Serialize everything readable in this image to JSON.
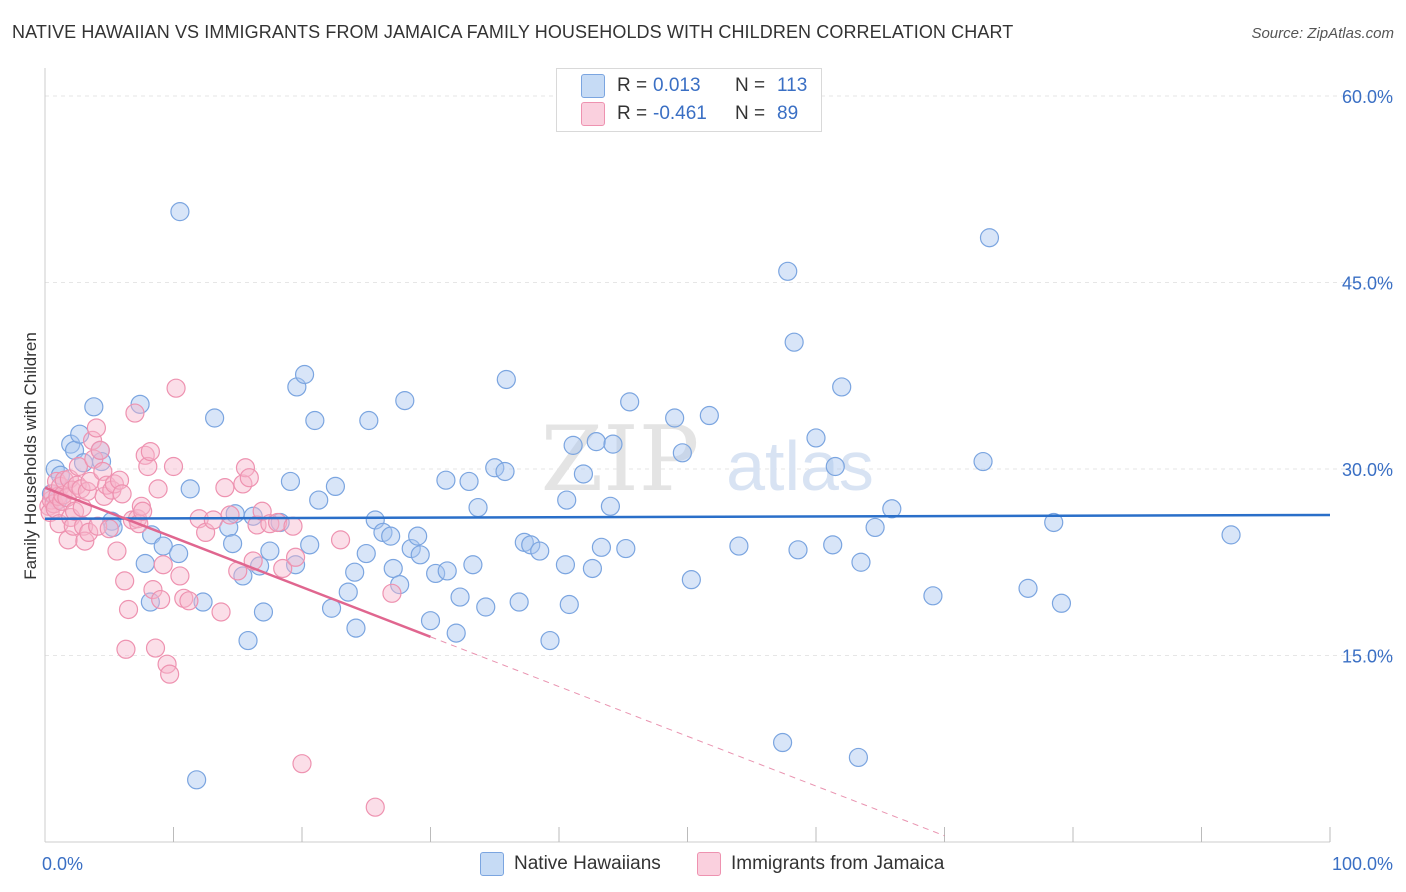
{
  "title": "NATIVE HAWAIIAN VS IMMIGRANTS FROM JAMAICA FAMILY HOUSEHOLDS WITH CHILDREN CORRELATION CHART",
  "source": "Source: ZipAtlas.com",
  "watermark": {
    "zip": "ZIP",
    "atlas": "atlas"
  },
  "colors": {
    "blue_fill": "#a8c6ef",
    "blue_stroke": "#7ba5e0",
    "blue_line": "#2a6fc9",
    "pink_fill": "#f6b6cb",
    "pink_stroke": "#ee92b0",
    "pink_line": "#e0668f",
    "axis_label": "#3a6fc4",
    "grid": "#e6e6e6"
  },
  "legend_top": {
    "rows": [
      {
        "r_label": "R =",
        "r_value": "0.013",
        "n_label": "N =",
        "n_value": "113",
        "color": "#a8c6ef"
      },
      {
        "r_label": "R =",
        "r_value": "-0.461",
        "n_label": "N =",
        "n_value": "89",
        "color": "#f6b6cb"
      }
    ]
  },
  "legend_bottom": [
    {
      "label": "Native Hawaiians",
      "color": "#a8c6ef"
    },
    {
      "label": "Immigrants from Jamaica",
      "color": "#f6b6cb"
    }
  ],
  "chart_data": {
    "type": "scatter",
    "title": "NATIVE HAWAIIAN VS IMMIGRANTS FROM JAMAICA FAMILY HOUSEHOLDS WITH CHILDREN CORRELATION CHART",
    "xlabel": "",
    "ylabel": "Family Households with Children",
    "xlim": [
      0,
      100
    ],
    "ylim": [
      0,
      60
    ],
    "x_tick_labels": [
      "0.0%",
      "100.0%"
    ],
    "y_ticks": [
      15,
      30,
      45,
      60
    ],
    "y_tick_labels": [
      "15.0%",
      "30.0%",
      "45.0%",
      "60.0%"
    ],
    "series": [
      {
        "name": "Native Hawaiians",
        "r": 0.013,
        "n": 113,
        "trend": {
          "x0": 0,
          "y0": 26.0,
          "x1": 100,
          "y1": 26.3,
          "dashed_to": 100
        },
        "points": [
          [
            0.5,
            28.0
          ],
          [
            0.8,
            30.0
          ],
          [
            1.0,
            27.5
          ],
          [
            1.2,
            29.5
          ],
          [
            2.0,
            32.0
          ],
          [
            2.3,
            31.5
          ],
          [
            2.7,
            32.8
          ],
          [
            3.0,
            30.5
          ],
          [
            3.8,
            35.0
          ],
          [
            4.3,
            31.5
          ],
          [
            4.4,
            30.6
          ],
          [
            5.2,
            25.8
          ],
          [
            5.3,
            25.3
          ],
          [
            7.4,
            35.2
          ],
          [
            7.8,
            22.4
          ],
          [
            8.2,
            19.3
          ],
          [
            8.3,
            24.7
          ],
          [
            9.2,
            23.8
          ],
          [
            10.4,
            23.2
          ],
          [
            10.5,
            50.7
          ],
          [
            11.3,
            28.4
          ],
          [
            11.8,
            5.0
          ],
          [
            12.3,
            19.3
          ],
          [
            13.2,
            34.1
          ],
          [
            14.3,
            25.3
          ],
          [
            14.6,
            24.0
          ],
          [
            14.8,
            26.4
          ],
          [
            15.4,
            21.4
          ],
          [
            15.8,
            16.2
          ],
          [
            16.2,
            26.2
          ],
          [
            16.7,
            22.2
          ],
          [
            17.0,
            18.5
          ],
          [
            17.5,
            23.4
          ],
          [
            18.3,
            25.7
          ],
          [
            19.1,
            29.0
          ],
          [
            19.5,
            22.3
          ],
          [
            19.6,
            36.6
          ],
          [
            20.2,
            37.6
          ],
          [
            20.6,
            23.9
          ],
          [
            21.0,
            33.9
          ],
          [
            21.3,
            27.5
          ],
          [
            22.3,
            18.8
          ],
          [
            22.6,
            28.6
          ],
          [
            23.6,
            20.1
          ],
          [
            24.1,
            21.7
          ],
          [
            24.2,
            17.2
          ],
          [
            25.0,
            23.2
          ],
          [
            25.2,
            33.9
          ],
          [
            25.7,
            25.9
          ],
          [
            26.3,
            24.9
          ],
          [
            26.9,
            24.6
          ],
          [
            27.1,
            22.0
          ],
          [
            27.6,
            20.7
          ],
          [
            28.0,
            35.5
          ],
          [
            28.5,
            23.6
          ],
          [
            29.0,
            24.6
          ],
          [
            29.2,
            23.1
          ],
          [
            30.0,
            17.8
          ],
          [
            30.4,
            21.6
          ],
          [
            31.2,
            29.1
          ],
          [
            31.3,
            21.8
          ],
          [
            32.0,
            16.8
          ],
          [
            32.3,
            19.7
          ],
          [
            33.0,
            29.0
          ],
          [
            33.3,
            22.3
          ],
          [
            33.7,
            26.9
          ],
          [
            34.3,
            18.9
          ],
          [
            35.0,
            30.1
          ],
          [
            35.8,
            29.8
          ],
          [
            35.9,
            37.2
          ],
          [
            36.9,
            19.3
          ],
          [
            37.3,
            24.1
          ],
          [
            37.8,
            23.9
          ],
          [
            38.5,
            23.4
          ],
          [
            39.3,
            16.2
          ],
          [
            40.5,
            22.3
          ],
          [
            40.6,
            27.5
          ],
          [
            40.8,
            19.1
          ],
          [
            41.1,
            31.9
          ],
          [
            41.9,
            29.6
          ],
          [
            42.6,
            22.0
          ],
          [
            42.9,
            32.2
          ],
          [
            43.3,
            23.7
          ],
          [
            44.0,
            27.0
          ],
          [
            44.2,
            32.0
          ],
          [
            45.2,
            23.6
          ],
          [
            45.5,
            35.4
          ],
          [
            49.0,
            34.1
          ],
          [
            49.6,
            31.3
          ],
          [
            50.3,
            21.1
          ],
          [
            51.7,
            34.3
          ],
          [
            54.0,
            23.8
          ],
          [
            57.4,
            8.0
          ],
          [
            57.8,
            45.9
          ],
          [
            58.3,
            40.2
          ],
          [
            58.6,
            23.5
          ],
          [
            60.0,
            32.5
          ],
          [
            61.3,
            23.9
          ],
          [
            61.5,
            30.2
          ],
          [
            62.0,
            36.6
          ],
          [
            63.3,
            6.8
          ],
          [
            63.5,
            22.5
          ],
          [
            64.6,
            25.3
          ],
          [
            65.9,
            26.8
          ],
          [
            69.1,
            19.8
          ],
          [
            73.0,
            30.6
          ],
          [
            73.5,
            48.6
          ],
          [
            76.5,
            20.4
          ],
          [
            78.5,
            25.7
          ],
          [
            79.1,
            19.2
          ],
          [
            92.3,
            24.7
          ]
        ]
      },
      {
        "name": "Immigrants from Jamaica",
        "r": -0.461,
        "n": 89,
        "trend": {
          "x0": 0,
          "y0": 28.5,
          "x1": 30,
          "y1": 16.5,
          "dashed_to": 70
        },
        "points": [
          [
            0.3,
            27.0
          ],
          [
            0.4,
            26.5
          ],
          [
            0.5,
            27.5
          ],
          [
            0.6,
            28.0
          ],
          [
            0.7,
            27.2
          ],
          [
            0.8,
            26.8
          ],
          [
            0.9,
            29.0
          ],
          [
            1.0,
            27.8
          ],
          [
            1.1,
            25.6
          ],
          [
            1.2,
            28.6
          ],
          [
            1.3,
            27.4
          ],
          [
            1.4,
            27.9
          ],
          [
            1.5,
            29.1
          ],
          [
            1.7,
            27.7
          ],
          [
            1.8,
            24.3
          ],
          [
            1.9,
            29.2
          ],
          [
            2.0,
            26.1
          ],
          [
            2.1,
            28.3
          ],
          [
            2.2,
            25.4
          ],
          [
            2.3,
            26.6
          ],
          [
            2.5,
            28.7
          ],
          [
            2.6,
            30.2
          ],
          [
            2.8,
            28.4
          ],
          [
            2.9,
            26.9
          ],
          [
            3.0,
            25.4
          ],
          [
            3.1,
            24.2
          ],
          [
            3.3,
            28.2
          ],
          [
            3.4,
            24.9
          ],
          [
            3.5,
            29.0
          ],
          [
            3.7,
            32.3
          ],
          [
            3.8,
            30.8
          ],
          [
            4.0,
            33.3
          ],
          [
            4.1,
            25.4
          ],
          [
            4.3,
            31.5
          ],
          [
            4.5,
            29.8
          ],
          [
            4.6,
            27.8
          ],
          [
            4.8,
            28.7
          ],
          [
            5.0,
            25.2
          ],
          [
            5.2,
            28.3
          ],
          [
            5.4,
            28.8
          ],
          [
            5.6,
            23.4
          ],
          [
            5.8,
            29.1
          ],
          [
            6.0,
            28.0
          ],
          [
            6.2,
            21.0
          ],
          [
            6.3,
            15.5
          ],
          [
            6.5,
            18.7
          ],
          [
            6.8,
            25.9
          ],
          [
            7.0,
            34.5
          ],
          [
            7.2,
            26.0
          ],
          [
            7.3,
            25.6
          ],
          [
            7.5,
            27.0
          ],
          [
            7.6,
            26.6
          ],
          [
            7.8,
            31.1
          ],
          [
            8.0,
            30.2
          ],
          [
            8.2,
            31.4
          ],
          [
            8.4,
            20.3
          ],
          [
            8.6,
            15.6
          ],
          [
            8.8,
            28.4
          ],
          [
            9.0,
            19.5
          ],
          [
            9.2,
            22.3
          ],
          [
            9.5,
            14.3
          ],
          [
            9.7,
            13.5
          ],
          [
            10.0,
            30.2
          ],
          [
            10.2,
            36.5
          ],
          [
            10.5,
            21.4
          ],
          [
            10.8,
            19.6
          ],
          [
            11.2,
            19.4
          ],
          [
            12.0,
            26.0
          ],
          [
            12.5,
            24.9
          ],
          [
            13.1,
            25.9
          ],
          [
            13.7,
            18.5
          ],
          [
            14.0,
            28.5
          ],
          [
            14.4,
            26.3
          ],
          [
            15.0,
            21.8
          ],
          [
            15.4,
            28.8
          ],
          [
            15.6,
            30.1
          ],
          [
            15.9,
            29.3
          ],
          [
            16.5,
            25.5
          ],
          [
            16.9,
            26.6
          ],
          [
            17.5,
            25.6
          ],
          [
            18.1,
            25.7
          ],
          [
            18.5,
            22.0
          ],
          [
            19.3,
            25.4
          ],
          [
            19.5,
            22.9
          ],
          [
            20.0,
            6.3
          ],
          [
            23.0,
            24.3
          ],
          [
            25.7,
            2.8
          ],
          [
            27.0,
            20.0
          ],
          [
            16.2,
            22.6
          ]
        ]
      }
    ]
  }
}
